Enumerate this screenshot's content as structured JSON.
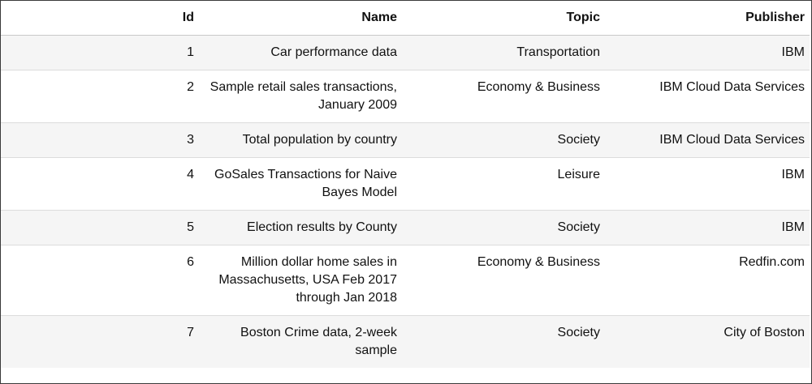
{
  "table": {
    "columns": [
      "Id",
      "Name",
      "Topic",
      "Publisher"
    ],
    "rows": [
      {
        "id": "1",
        "name": "Car performance data",
        "topic": "Transportation",
        "publisher": "IBM"
      },
      {
        "id": "2",
        "name": "Sample retail sales transactions, January 2009",
        "topic": "Economy & Business",
        "publisher": "IBM Cloud Data Services"
      },
      {
        "id": "3",
        "name": "Total population by country",
        "topic": "Society",
        "publisher": "IBM Cloud Data Services"
      },
      {
        "id": "4",
        "name": "GoSales Transactions for Naive Bayes Model",
        "topic": "Leisure",
        "publisher": "IBM"
      },
      {
        "id": "5",
        "name": "Election results by County",
        "topic": "Society",
        "publisher": "IBM"
      },
      {
        "id": "6",
        "name": "Million dollar home sales in Massachusetts, USA Feb 2017 through Jan 2018",
        "topic": "Economy & Business",
        "publisher": "Redfin.com"
      },
      {
        "id": "7",
        "name": "Boston Crime data, 2-week sample",
        "topic": "Society",
        "publisher": "City of Boston"
      }
    ]
  }
}
